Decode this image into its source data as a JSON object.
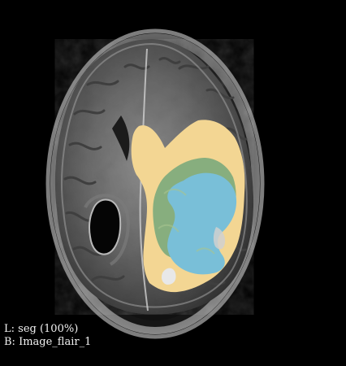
{
  "viewer": {
    "background_color": "#000000",
    "text_color": "#f2f2f2",
    "label_layer": "L: seg (100%)",
    "base_layer": "B: Image_flair_1"
  },
  "segmentation_colors": {
    "edema": "#f3d693",
    "non_enhancing": "#87ae7e",
    "enhancing": "#79bfd8"
  }
}
